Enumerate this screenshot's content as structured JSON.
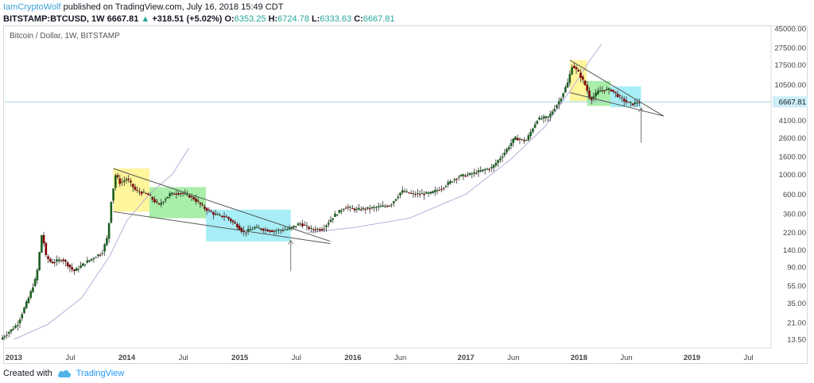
{
  "header": {
    "author": "IamCryptoWolf",
    "published": "published on TradingView.com, July 16, 2018 15:49 CDT",
    "symbol": "BITSTAMP:BTCUSD, 1W",
    "last": "6667.81",
    "change_arrow": "▲",
    "change": "+318.51 (+5.02%)",
    "o_label": "O:",
    "o_val": "6353.25",
    "h_label": "H:",
    "h_val": "6724.78",
    "l_label": "L:",
    "l_val": "6333.63",
    "c_label": "C:",
    "c_val": "6667.81"
  },
  "footer": {
    "created_with": "Created with",
    "brand": "TradingView",
    "brand_icon": "tradingview-cloud-icon"
  },
  "colors": {
    "up": "#26a69a",
    "down": "#ef5350",
    "candle_up": "#1b5e20",
    "candle_down": "#7f0000",
    "trendline": "#555555",
    "curve": "#b8b0d8",
    "price_line": "#9ed3e6",
    "yellow_box": "#fff27a",
    "green_box": "#8ce88c",
    "cyan_box": "#8ae8f4"
  },
  "chart_data": {
    "type": "candlestick",
    "title": "Bitcoin / Dollar, 1W, BITSTAMP",
    "y_scale": "log",
    "ylim": [
      10,
      50000
    ],
    "x_ticks": [
      "2013",
      "Jul",
      "2014",
      "Jul",
      "2015",
      "Jul",
      "2016",
      "Jun",
      "2017",
      "Jun",
      "2018",
      "Jun",
      "2019",
      "Jul"
    ],
    "x_tick_dates": [
      2013.0,
      2013.5,
      2014.0,
      2014.5,
      2015.0,
      2015.5,
      2016.0,
      2016.42,
      2017.0,
      2017.42,
      2018.0,
      2018.42,
      2019.0,
      2019.5
    ],
    "y_ticks": [
      "45000.00",
      "27500.00",
      "17500.00",
      "10500.00",
      "6667.81",
      "4100.00",
      "2600.00",
      "1600.00",
      "1000.00",
      "600.00",
      "360.00",
      "220.00",
      "140.00",
      "90.00",
      "55.00",
      "35.00",
      "21.00",
      "13.50"
    ],
    "y_tick_values": [
      45000,
      27500,
      17500,
      10500,
      6667.81,
      4100,
      2600,
      1600,
      1000,
      600,
      360,
      220,
      140,
      90,
      55,
      35,
      21,
      13.5
    ],
    "last_price": 6667.81,
    "price_path": [
      [
        2012.9,
        13.5
      ],
      [
        2013.05,
        20
      ],
      [
        2013.15,
        40
      ],
      [
        2013.22,
        70
      ],
      [
        2013.27,
        230
      ],
      [
        2013.3,
        120
      ],
      [
        2013.35,
        100
      ],
      [
        2013.45,
        110
      ],
      [
        2013.55,
        80
      ],
      [
        2013.65,
        100
      ],
      [
        2013.75,
        120
      ],
      [
        2013.8,
        130
      ],
      [
        2013.85,
        200
      ],
      [
        2013.88,
        500
      ],
      [
        2013.92,
        1000
      ],
      [
        2013.96,
        800
      ],
      [
        2014.02,
        900
      ],
      [
        2014.1,
        650
      ],
      [
        2014.2,
        600
      ],
      [
        2014.3,
        450
      ],
      [
        2014.4,
        600
      ],
      [
        2014.5,
        620
      ],
      [
        2014.6,
        550
      ],
      [
        2014.7,
        420
      ],
      [
        2014.8,
        350
      ],
      [
        2014.9,
        330
      ],
      [
        2015.0,
        260
      ],
      [
        2015.05,
        220
      ],
      [
        2015.15,
        250
      ],
      [
        2015.3,
        230
      ],
      [
        2015.45,
        240
      ],
      [
        2015.55,
        280
      ],
      [
        2015.65,
        240
      ],
      [
        2015.75,
        240
      ],
      [
        2015.85,
        340
      ],
      [
        2015.95,
        430
      ],
      [
        2016.05,
        400
      ],
      [
        2016.2,
        420
      ],
      [
        2016.35,
        450
      ],
      [
        2016.45,
        650
      ],
      [
        2016.55,
        600
      ],
      [
        2016.7,
        610
      ],
      [
        2016.8,
        700
      ],
      [
        2016.95,
        950
      ],
      [
        2017.05,
        1000
      ],
      [
        2017.15,
        1100
      ],
      [
        2017.25,
        1200
      ],
      [
        2017.35,
        1700
      ],
      [
        2017.45,
        2600
      ],
      [
        2017.55,
        2400
      ],
      [
        2017.65,
        4200
      ],
      [
        2017.75,
        4500
      ],
      [
        2017.85,
        7000
      ],
      [
        2017.92,
        11000
      ],
      [
        2017.96,
        17500
      ],
      [
        2018.02,
        14000
      ],
      [
        2018.08,
        10000
      ],
      [
        2018.12,
        7000
      ],
      [
        2018.2,
        9000
      ],
      [
        2018.3,
        9200
      ],
      [
        2018.38,
        7500
      ],
      [
        2018.45,
        6500
      ],
      [
        2018.5,
        6300
      ],
      [
        2018.54,
        6667.81
      ]
    ],
    "trendlines": [
      {
        "from": [
          2013.88,
          1170
        ],
        "to": [
          2015.8,
          175
        ]
      },
      {
        "from": [
          2013.88,
          380
        ],
        "to": [
          2015.8,
          165
        ]
      },
      {
        "from": [
          2017.92,
          19800
        ],
        "to": [
          2018.75,
          4600
        ]
      },
      {
        "from": [
          2017.92,
          8500
        ],
        "to": [
          2018.75,
          4600
        ]
      }
    ],
    "boxes": [
      {
        "color": "yellow",
        "x": [
          2013.88,
          2014.2
        ],
        "y": [
          380,
          1170
        ]
      },
      {
        "color": "green",
        "x": [
          2014.2,
          2014.7
        ],
        "y": [
          320,
          720
        ]
      },
      {
        "color": "cyan",
        "x": [
          2014.7,
          2015.45
        ],
        "y": [
          175,
          400
        ]
      },
      {
        "color": "yellow",
        "x": [
          2017.92,
          2018.07
        ],
        "y": [
          6800,
          19800
        ]
      },
      {
        "color": "green",
        "x": [
          2018.07,
          2018.28
        ],
        "y": [
          6000,
          11500
        ]
      },
      {
        "color": "cyan",
        "x": [
          2018.28,
          2018.55
        ],
        "y": [
          5800,
          10000
        ]
      }
    ],
    "arrows": [
      {
        "x": 2015.45,
        "from": 80,
        "to": 180
      },
      {
        "x": 2018.55,
        "from": 2300,
        "to": 5700
      }
    ],
    "curve_points": [
      [
        2013.0,
        13.5
      ],
      [
        2013.3,
        20
      ],
      [
        2013.6,
        40
      ],
      [
        2013.85,
        120
      ],
      [
        2014.0,
        300
      ],
      [
        2014.2,
        600
      ],
      [
        2014.4,
        1000
      ],
      [
        2014.55,
        2000
      ]
    ],
    "curve2_points": [
      [
        2015.6,
        220
      ],
      [
        2016.0,
        250
      ],
      [
        2016.5,
        320
      ],
      [
        2017.0,
        600
      ],
      [
        2017.4,
        1500
      ],
      [
        2017.7,
        3500
      ],
      [
        2017.95,
        10000
      ],
      [
        2018.1,
        20000
      ],
      [
        2018.2,
        30000
      ]
    ]
  }
}
